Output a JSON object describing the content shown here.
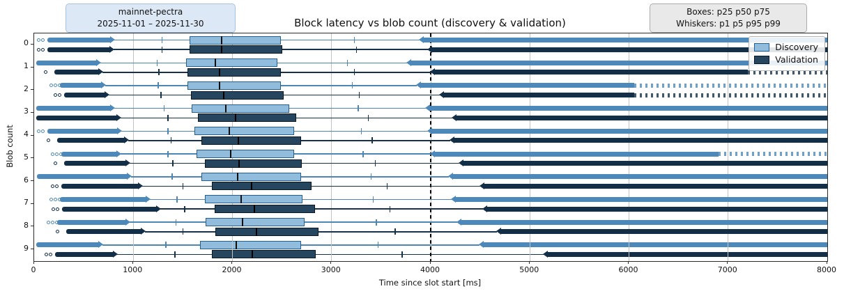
{
  "title": "Block latency vs blob count (discovery & validation)",
  "badge_left": {
    "line1": "mainnet-pectra",
    "line2": "2025-11-01 – 2025-11-30"
  },
  "badge_right": {
    "line1": "Boxes: p25 p50 p75",
    "line2": "Whiskers: p1 p5 p95 p99"
  },
  "legend": {
    "items": [
      {
        "label": "Discovery"
      },
      {
        "label": "Validation"
      }
    ]
  },
  "axes": {
    "xlabel": "Time since slot start [ms]",
    "ylabel": "Blob count",
    "xlim": [
      0,
      8000
    ],
    "x_ticks": [
      0,
      1000,
      2000,
      3000,
      4000,
      5000,
      6000,
      7000,
      8000
    ],
    "y_ticks": [
      "0",
      "1",
      "2",
      "3",
      "4",
      "5",
      "6",
      "7",
      "8",
      "9"
    ],
    "grid": "vertical",
    "reference_line_ms": 4000
  },
  "colors": {
    "discovery": {
      "box_fill": "#92bcdc",
      "box_edge": "#23608f",
      "whisker": "#4b86b5",
      "flier": "#4d88ba",
      "median": "#101010"
    },
    "validation": {
      "box_fill": "#26455e",
      "box_edge": "#0a1724",
      "whisker": "#15324a",
      "flier": "#132f47",
      "median": "#000000"
    },
    "gridline": "#c3c3c3",
    "spine": "#2b2b2b",
    "reference_line": "#000000"
  },
  "chart_data": {
    "type": "boxplot-horizontal",
    "title": "Block latency vs blob count (discovery & validation)",
    "unit": "ms",
    "box_spec": "p25 p50 p75",
    "whisker_spec": "p1 p5 p95 p99",
    "categories": [
      0,
      1,
      2,
      3,
      4,
      5,
      6,
      7,
      8,
      9
    ],
    "series": [
      {
        "name": "Discovery",
        "rows": [
          {
            "blob": 0,
            "min": 40,
            "p1": 810,
            "p5": 1290,
            "p25": 1570,
            "p50": 1890,
            "p75": 2490,
            "p95": 3230,
            "p99": 3890,
            "max": 8000,
            "dots": 2,
            "sparse_from": null
          },
          {
            "blob": 1,
            "min": 20,
            "p1": 670,
            "p5": 1240,
            "p25": 1530,
            "p50": 1830,
            "p75": 2450,
            "p95": 3160,
            "p99": 3760,
            "max": 8000,
            "dots": 0,
            "sparse_from": null
          },
          {
            "blob": 2,
            "min": 170,
            "p1": 720,
            "p5": 1250,
            "p25": 1550,
            "p50": 1870,
            "p75": 2490,
            "p95": 3210,
            "p99": 3860,
            "max": 8000,
            "dots": 3,
            "sparse_from": 6050
          },
          {
            "blob": 3,
            "min": 20,
            "p1": 810,
            "p5": 1310,
            "p25": 1590,
            "p50": 1930,
            "p75": 2570,
            "p95": 3270,
            "p99": 3950,
            "max": 8000,
            "dots": 0,
            "sparse_from": null
          },
          {
            "blob": 4,
            "min": 40,
            "p1": 880,
            "p5": 1350,
            "p25": 1620,
            "p50": 1970,
            "p75": 2620,
            "p95": 3300,
            "p99": 3970,
            "max": 8000,
            "dots": 2,
            "sparse_from": null
          },
          {
            "blob": 5,
            "min": 180,
            "p1": 870,
            "p5": 1350,
            "p25": 1640,
            "p50": 1980,
            "p75": 2620,
            "p95": 3320,
            "p99": 4000,
            "max": 8000,
            "dots": 3,
            "sparse_from": 6900
          },
          {
            "blob": 6,
            "min": 30,
            "p1": 980,
            "p5": 1390,
            "p25": 1690,
            "p50": 2050,
            "p75": 2690,
            "p95": 3400,
            "p99": 4180,
            "max": 8000,
            "dots": 0,
            "sparse_from": null
          },
          {
            "blob": 7,
            "min": 170,
            "p1": 1170,
            "p5": 1440,
            "p25": 1720,
            "p50": 2090,
            "p75": 2710,
            "p95": 3420,
            "p99": 4210,
            "max": 8000,
            "dots": 3,
            "sparse_from": null
          },
          {
            "blob": 8,
            "min": 140,
            "p1": 960,
            "p5": 1430,
            "p25": 1730,
            "p50": 2100,
            "p75": 2730,
            "p95": 3450,
            "p99": 4270,
            "max": 8000,
            "dots": 3,
            "sparse_from": null
          },
          {
            "blob": 9,
            "min": 20,
            "p1": 690,
            "p5": 1330,
            "p25": 1670,
            "p50": 2040,
            "p75": 2690,
            "p95": 3470,
            "p99": 4490,
            "max": 8000,
            "dots": 0,
            "sparse_from": null
          }
        ]
      },
      {
        "name": "Validation",
        "rows": [
          {
            "blob": 0,
            "min": 40,
            "p1": 800,
            "p5": 1290,
            "p25": 1570,
            "p50": 1890,
            "p75": 2500,
            "p95": 3250,
            "p99": 3970,
            "max": 8000,
            "dots": 2,
            "sparse_from": null
          },
          {
            "blob": 1,
            "min": 110,
            "p1": 690,
            "p5": 1260,
            "p25": 1550,
            "p50": 1870,
            "p75": 2490,
            "p95": 3230,
            "p99": 4000,
            "max": 8000,
            "dots": 1,
            "sparse_from": 7200
          },
          {
            "blob": 2,
            "min": 210,
            "p1": 750,
            "p5": 1280,
            "p25": 1580,
            "p50": 1910,
            "p75": 2520,
            "p95": 3280,
            "p99": 4090,
            "max": 8000,
            "dots": 2,
            "sparse_from": 6050
          },
          {
            "blob": 3,
            "min": 20,
            "p1": 870,
            "p5": 1350,
            "p25": 1650,
            "p50": 2030,
            "p75": 2640,
            "p95": 3370,
            "p99": 4220,
            "max": 8000,
            "dots": 0,
            "sparse_from": null
          },
          {
            "blob": 4,
            "min": 140,
            "p1": 950,
            "p5": 1380,
            "p25": 1690,
            "p50": 2060,
            "p75": 2690,
            "p95": 3410,
            "p99": 4200,
            "max": 8000,
            "dots": 1,
            "sparse_from": null
          },
          {
            "blob": 5,
            "min": 210,
            "p1": 960,
            "p5": 1400,
            "p25": 1720,
            "p50": 2070,
            "p75": 2700,
            "p95": 3440,
            "p99": 4290,
            "max": 8000,
            "dots": 1,
            "sparse_from": null
          },
          {
            "blob": 6,
            "min": 180,
            "p1": 1090,
            "p5": 1500,
            "p25": 1790,
            "p50": 2190,
            "p75": 2800,
            "p95": 3560,
            "p99": 4500,
            "max": 8000,
            "dots": 2,
            "sparse_from": null
          },
          {
            "blob": 7,
            "min": 190,
            "p1": 1270,
            "p5": 1520,
            "p25": 1820,
            "p50": 2220,
            "p75": 2830,
            "p95": 3590,
            "p99": 4530,
            "max": 8000,
            "dots": 2,
            "sparse_from": null
          },
          {
            "blob": 8,
            "min": 230,
            "p1": 1120,
            "p5": 1500,
            "p25": 1830,
            "p50": 2240,
            "p75": 2870,
            "p95": 3640,
            "p99": 4670,
            "max": 8000,
            "dots": 1,
            "sparse_from": null
          },
          {
            "blob": 9,
            "min": 120,
            "p1": 840,
            "p5": 1420,
            "p25": 1790,
            "p50": 2200,
            "p75": 2840,
            "p95": 3710,
            "p99": 5140,
            "max": 8000,
            "dots": 2,
            "sparse_from": null
          }
        ]
      }
    ],
    "annotations": {
      "dashed_vertical_line_ms": 4000
    },
    "outlier_note": "dense flier clusters below p1 (from min) and above p99 (to 8000 ms)"
  }
}
